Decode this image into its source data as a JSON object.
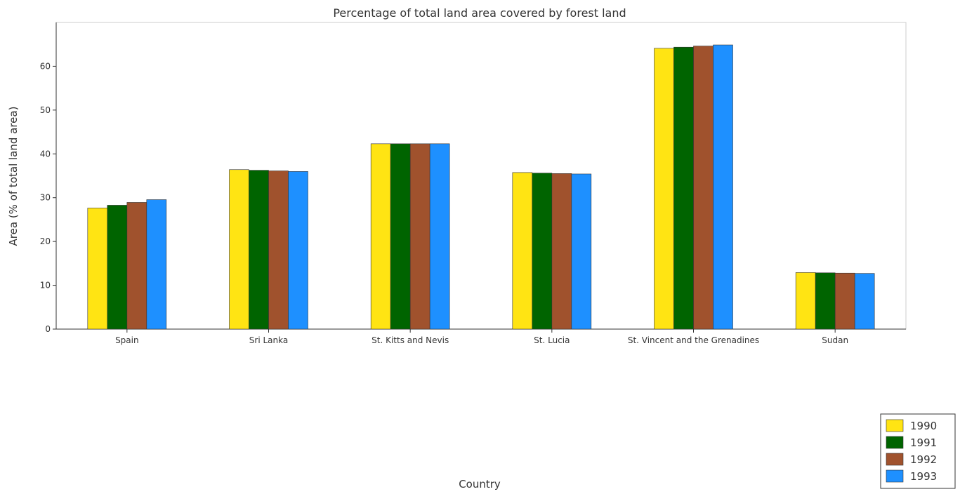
{
  "chart_data": {
    "type": "bar",
    "title": "Percentage of total land area covered by forest land",
    "xlabel": "Country",
    "ylabel": "Area (% of total land area)",
    "ylim": [
      0,
      70
    ],
    "yticks": [
      0,
      10,
      20,
      30,
      40,
      50,
      60
    ],
    "grid": false,
    "legend_position": "bottom-right",
    "categories": [
      "Spain",
      "Sri Lanka",
      "St. Kitts and Nevis",
      "St. Lucia",
      "St. Vincent and the Grenadines",
      "Sudan"
    ],
    "series": [
      {
        "name": "1990",
        "color": "#ffe413",
        "values": [
          27.65,
          36.4,
          42.31,
          35.74,
          64.1,
          12.91
        ]
      },
      {
        "name": "1991",
        "color": "#006400",
        "values": [
          28.28,
          36.26,
          42.31,
          35.62,
          64.36,
          12.85
        ]
      },
      {
        "name": "1992",
        "color": "#a0522d",
        "values": [
          28.92,
          36.12,
          42.31,
          35.51,
          64.62,
          12.78
        ]
      },
      {
        "name": "1993",
        "color": "#1e90ff",
        "values": [
          29.55,
          35.98,
          42.31,
          35.41,
          64.87,
          12.71
        ]
      }
    ]
  }
}
